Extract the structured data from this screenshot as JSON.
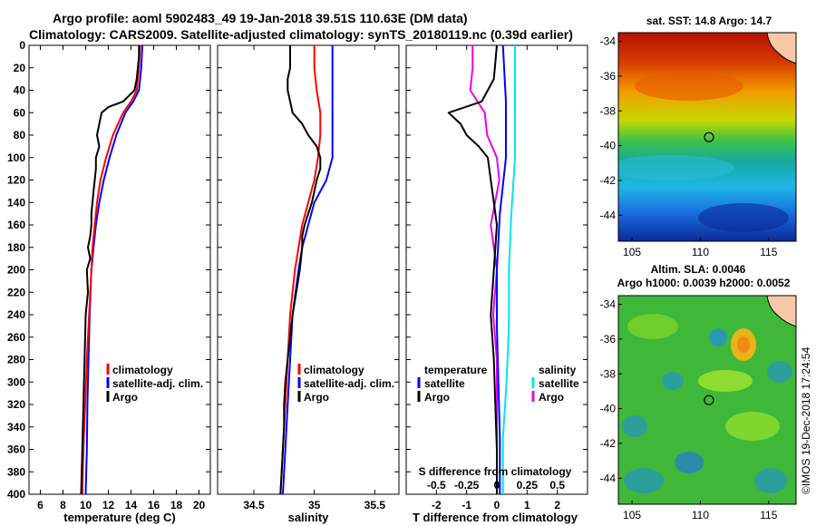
{
  "header": {
    "title_line1": "Argo profile: aoml 5902483_49 19-Jan-2018 39.51S 110.63E (DM data)",
    "title_line2": "Climatology: CARS2009. Satellite-adjusted climatology: synTS_20180119.nc (0.39d earlier)"
  },
  "colors": {
    "climatology": "#ff0000",
    "satellite_adj": "#0000ff",
    "argo": "#000000",
    "s_satellite": "#00e5ee",
    "s_argo": "#ee00ee"
  },
  "chart_data": [
    {
      "type": "line",
      "panel": "temperature",
      "xlabel": "temperature (deg C)",
      "ylabel": "depth",
      "xlim": [
        5,
        21
      ],
      "ylim": [
        400,
        0
      ],
      "xticks": [
        6,
        8,
        10,
        12,
        14,
        16,
        18,
        20
      ],
      "yticks": [
        0,
        20,
        40,
        60,
        80,
        100,
        120,
        140,
        160,
        180,
        200,
        220,
        240,
        260,
        280,
        300,
        320,
        340,
        360,
        380,
        400
      ],
      "legend": [
        "climatology",
        "satellite-adj. clim.",
        "Argo"
      ],
      "series": [
        {
          "name": "climatology",
          "depth": [
            0,
            20,
            40,
            50,
            60,
            80,
            100,
            120,
            140,
            160,
            180,
            200,
            240,
            280,
            320,
            360,
            400
          ],
          "values": [
            14.8,
            14.7,
            14.5,
            14.0,
            13.3,
            12.4,
            11.8,
            11.3,
            11.0,
            10.8,
            10.6,
            10.5,
            10.3,
            10.1,
            9.95,
            9.8,
            9.7
          ]
        },
        {
          "name": "satellite-adj. clim.",
          "depth": [
            0,
            20,
            40,
            50,
            60,
            80,
            100,
            120,
            140,
            160,
            180,
            200,
            240,
            280,
            320,
            360,
            400
          ],
          "values": [
            15.0,
            14.9,
            14.7,
            14.2,
            13.5,
            12.7,
            12.1,
            11.6,
            11.2,
            10.9,
            10.7,
            10.5,
            10.35,
            10.25,
            10.15,
            10.1,
            10.0
          ]
        },
        {
          "name": "Argo",
          "depth": [
            0,
            10,
            20,
            30,
            40,
            50,
            55,
            60,
            70,
            80,
            90,
            100,
            110,
            120,
            130,
            140,
            150,
            160,
            170,
            180,
            190,
            200,
            220,
            240,
            260,
            280,
            300,
            320,
            340,
            360,
            380,
            400
          ],
          "values": [
            14.7,
            14.7,
            14.6,
            14.5,
            14.3,
            13.3,
            12.0,
            11.4,
            11.2,
            11.0,
            11.2,
            10.9,
            10.9,
            10.8,
            10.7,
            10.6,
            10.5,
            10.5,
            10.4,
            10.2,
            10.4,
            10.1,
            10.2,
            10.0,
            9.95,
            9.9,
            9.85,
            9.8,
            9.75,
            9.7,
            9.65,
            9.6
          ]
        }
      ]
    },
    {
      "type": "line",
      "panel": "salinity",
      "xlabel": "salinity",
      "xlim": [
        34.2,
        35.7
      ],
      "ylim": [
        400,
        0
      ],
      "xticks": [
        34.5,
        35,
        35.5
      ],
      "xtick_labels": [
        "34.5",
        "35",
        "35.5"
      ],
      "legend": [
        "climatology",
        "satellite-adj. clim.",
        "Argo"
      ],
      "series": [
        {
          "name": "climatology",
          "depth": [
            0,
            20,
            40,
            60,
            80,
            100,
            120,
            140,
            160,
            180,
            200,
            240,
            280,
            320,
            360,
            400
          ],
          "values": [
            35.0,
            35.0,
            35.02,
            35.05,
            35.05,
            35.03,
            35.0,
            34.95,
            34.9,
            34.87,
            34.84,
            34.8,
            34.78,
            34.76,
            34.74,
            34.72
          ]
        },
        {
          "name": "satellite-adj. clim.",
          "depth": [
            0,
            20,
            40,
            60,
            80,
            100,
            120,
            140,
            160,
            180,
            200,
            240,
            280,
            320,
            360,
            400
          ],
          "values": [
            35.15,
            35.15,
            35.15,
            35.15,
            35.15,
            35.15,
            35.1,
            35.0,
            34.95,
            34.9,
            34.87,
            34.82,
            34.8,
            34.78,
            34.76,
            34.74
          ]
        },
        {
          "name": "Argo",
          "depth": [
            0,
            20,
            30,
            40,
            50,
            60,
            70,
            80,
            90,
            100,
            110,
            120,
            130,
            140,
            150,
            160,
            170,
            180,
            200,
            220,
            240,
            260,
            280,
            300,
            320,
            340,
            360,
            380,
            400
          ],
          "values": [
            34.8,
            34.8,
            34.78,
            34.78,
            34.8,
            34.82,
            34.9,
            34.95,
            35.02,
            35.05,
            35.05,
            35.02,
            35.0,
            34.98,
            34.95,
            34.92,
            34.9,
            34.9,
            34.88,
            34.85,
            34.82,
            34.8,
            34.78,
            34.76,
            34.75,
            34.75,
            34.74,
            34.73,
            34.72
          ]
        }
      ]
    },
    {
      "type": "line",
      "panel": "difference",
      "xlabel": "T difference from climatology",
      "top_label": "S difference from climatology",
      "xlim": [
        -3,
        3
      ],
      "ylim": [
        400,
        0
      ],
      "xticks": [
        -2,
        -1,
        0,
        1,
        2
      ],
      "top_xticks_labels": [
        "-0.5",
        "-0.25",
        "0",
        "0.25",
        "0.5"
      ],
      "legend_left_title": "temperature",
      "legend_right_title": "salinity",
      "legend_left": [
        "satellite",
        "Argo"
      ],
      "legend_right": [
        "satellite",
        "Argo"
      ],
      "series": [
        {
          "name": "T satellite",
          "depth": [
            0,
            50,
            100,
            150,
            200,
            250,
            300,
            350,
            400
          ],
          "values": [
            0.2,
            0.3,
            0.3,
            0.1,
            0.0,
            0.0,
            0.05,
            0.1,
            0.1
          ]
        },
        {
          "name": "T Argo",
          "depth": [
            0,
            30,
            50,
            60,
            70,
            80,
            90,
            100,
            120,
            140,
            160,
            200,
            240,
            280,
            320,
            360,
            400
          ],
          "values": [
            0.0,
            -0.1,
            -0.5,
            -1.6,
            -1.2,
            -1.0,
            -0.6,
            -0.3,
            -0.2,
            -0.1,
            0.0,
            -0.1,
            -0.2,
            -0.1,
            -0.05,
            0.0,
            0.0
          ]
        },
        {
          "name": "S satellite",
          "depth": [
            0,
            50,
            100,
            150,
            200,
            250,
            300,
            350,
            400
          ],
          "values": [
            0.15,
            0.15,
            0.15,
            0.12,
            0.1,
            0.1,
            0.08,
            0.05,
            0.05
          ]
        },
        {
          "name": "S Argo",
          "depth": [
            0,
            20,
            40,
            60,
            80,
            100,
            120,
            160,
            200,
            240,
            280,
            320,
            360,
            400
          ],
          "values": [
            -0.2,
            -0.2,
            -0.22,
            -0.1,
            -0.08,
            0.0,
            0.02,
            -0.05,
            0.0,
            -0.03,
            0.0,
            0.0,
            0.0,
            0.0
          ]
        }
      ]
    },
    {
      "type": "heatmap",
      "panel": "sst-map",
      "title": "sat. SST: 14.8 Argo: 14.7",
      "xlim": [
        104,
        117
      ],
      "ylim": [
        -45.5,
        -33.5
      ],
      "xticks": [
        105,
        110,
        115
      ],
      "yticks": [
        -34,
        -36,
        -38,
        -40,
        -42,
        -44
      ],
      "marker": {
        "lon": 110.63,
        "lat": -39.51
      }
    },
    {
      "type": "heatmap",
      "panel": "sla-map",
      "title": "Altim. SLA: 0.0046",
      "subtitle": "Argo h1000: 0.0039 h2000: 0.0052",
      "xlim": [
        104,
        117
      ],
      "ylim": [
        -45.5,
        -33.5
      ],
      "xticks": [
        105,
        110,
        115
      ],
      "yticks": [
        -34,
        -36,
        -38,
        -40,
        -42,
        -44
      ],
      "marker": {
        "lon": 110.63,
        "lat": -39.51
      }
    }
  ],
  "footer": {
    "stamp": "©IMOS 19-Dec-2018 17:24:54"
  }
}
